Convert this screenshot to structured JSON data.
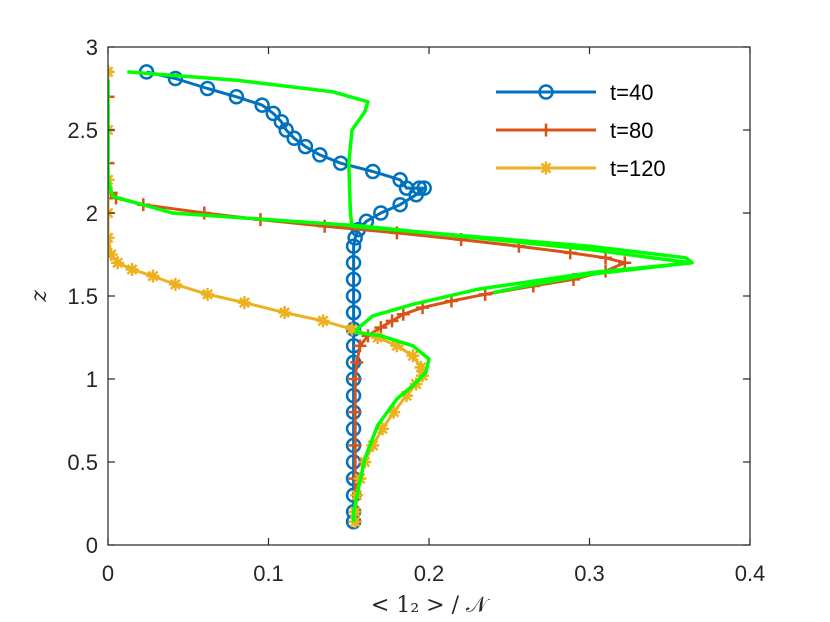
{
  "chart_data": {
    "type": "line",
    "xlabel": "< 1₂ > / 𝒩",
    "ylabel": "z",
    "xlim": [
      0,
      0.4
    ],
    "ylim": [
      0,
      3
    ],
    "xticks": [
      "0",
      "0.1",
      "0.2",
      "0.3",
      "0.4"
    ],
    "yticks": [
      "0",
      "0.5",
      "1",
      "1.5",
      "2",
      "2.5",
      "3"
    ],
    "grid": false,
    "legend_position": "top-right",
    "series": [
      {
        "name": "t=40",
        "color": "#0072BD",
        "marker": "circle",
        "points": [
          [
            0.024,
            2.85
          ],
          [
            0.042,
            2.81
          ],
          [
            0.062,
            2.75
          ],
          [
            0.08,
            2.7
          ],
          [
            0.096,
            2.65
          ],
          [
            0.103,
            2.6
          ],
          [
            0.108,
            2.55
          ],
          [
            0.111,
            2.5
          ],
          [
            0.116,
            2.45
          ],
          [
            0.123,
            2.4
          ],
          [
            0.132,
            2.35
          ],
          [
            0.145,
            2.3
          ],
          [
            0.165,
            2.25
          ],
          [
            0.182,
            2.2
          ],
          [
            0.186,
            2.15
          ],
          [
            0.194,
            2.15
          ],
          [
            0.197,
            2.15
          ],
          [
            0.192,
            2.11
          ],
          [
            0.182,
            2.05
          ],
          [
            0.17,
            2.0
          ],
          [
            0.161,
            1.95
          ],
          [
            0.156,
            1.9
          ],
          [
            0.154,
            1.85
          ],
          [
            0.153,
            1.8
          ],
          [
            0.153,
            1.7
          ],
          [
            0.153,
            1.6
          ],
          [
            0.153,
            1.5
          ],
          [
            0.153,
            1.4
          ],
          [
            0.153,
            1.3
          ],
          [
            0.153,
            1.2
          ],
          [
            0.153,
            1.1
          ],
          [
            0.153,
            1.0
          ],
          [
            0.153,
            0.9
          ],
          [
            0.153,
            0.8
          ],
          [
            0.153,
            0.7
          ],
          [
            0.153,
            0.6
          ],
          [
            0.153,
            0.5
          ],
          [
            0.153,
            0.4
          ],
          [
            0.153,
            0.3
          ],
          [
            0.153,
            0.2
          ],
          [
            0.153,
            0.14
          ]
        ]
      },
      {
        "name": "t=80",
        "color": "#D95319",
        "marker": "plus",
        "points": [
          [
            0.0,
            2.85
          ],
          [
            0.0,
            2.7
          ],
          [
            0.0,
            2.5
          ],
          [
            0.0,
            2.3
          ],
          [
            0.0,
            2.2
          ],
          [
            0.002,
            2.12
          ],
          [
            0.005,
            2.09
          ],
          [
            0.022,
            2.05
          ],
          [
            0.06,
            2.0
          ],
          [
            0.095,
            1.96
          ],
          [
            0.135,
            1.92
          ],
          [
            0.18,
            1.88
          ],
          [
            0.22,
            1.84
          ],
          [
            0.256,
            1.8
          ],
          [
            0.288,
            1.76
          ],
          [
            0.31,
            1.73
          ],
          [
            0.322,
            1.7
          ],
          [
            0.31,
            1.65
          ],
          [
            0.29,
            1.6
          ],
          [
            0.265,
            1.56
          ],
          [
            0.235,
            1.51
          ],
          [
            0.214,
            1.47
          ],
          [
            0.196,
            1.43
          ],
          [
            0.184,
            1.39
          ],
          [
            0.177,
            1.35
          ],
          [
            0.17,
            1.31
          ],
          [
            0.162,
            1.26
          ],
          [
            0.157,
            1.2
          ],
          [
            0.155,
            1.1
          ],
          [
            0.154,
            1.0
          ],
          [
            0.154,
            0.8
          ],
          [
            0.154,
            0.6
          ],
          [
            0.154,
            0.4
          ],
          [
            0.154,
            0.2
          ],
          [
            0.154,
            0.14
          ]
        ]
      },
      {
        "name": "t=120",
        "color": "#EDB120",
        "marker": "asterisk",
        "points": [
          [
            0.0,
            2.85
          ],
          [
            0.0,
            2.5
          ],
          [
            0.0,
            2.2
          ],
          [
            0.0,
            2.0
          ],
          [
            0.0,
            1.85
          ],
          [
            0.002,
            1.75
          ],
          [
            0.006,
            1.7
          ],
          [
            0.015,
            1.66
          ],
          [
            0.028,
            1.62
          ],
          [
            0.042,
            1.57
          ],
          [
            0.062,
            1.51
          ],
          [
            0.085,
            1.46
          ],
          [
            0.11,
            1.4
          ],
          [
            0.134,
            1.35
          ],
          [
            0.152,
            1.3
          ],
          [
            0.168,
            1.25
          ],
          [
            0.18,
            1.2
          ],
          [
            0.19,
            1.14
          ],
          [
            0.195,
            1.07
          ],
          [
            0.196,
            1.02
          ],
          [
            0.192,
            0.97
          ],
          [
            0.186,
            0.9
          ],
          [
            0.178,
            0.8
          ],
          [
            0.171,
            0.7
          ],
          [
            0.165,
            0.6
          ],
          [
            0.16,
            0.5
          ],
          [
            0.157,
            0.4
          ],
          [
            0.155,
            0.3
          ],
          [
            0.154,
            0.2
          ],
          [
            0.154,
            0.14
          ]
        ]
      },
      {
        "name": "",
        "color": "#00FF00",
        "marker": "none",
        "points": [
          [
            0.012,
            2.85
          ],
          [
            0.08,
            2.8
          ],
          [
            0.14,
            2.73
          ],
          [
            0.162,
            2.67
          ],
          [
            0.16,
            2.61
          ],
          [
            0.152,
            2.5
          ],
          [
            0.15,
            2.3
          ],
          [
            0.151,
            2.0
          ],
          [
            0.152,
            1.92
          ],
          [
            0.2,
            1.88
          ],
          [
            0.3,
            1.8
          ],
          [
            0.36,
            1.73
          ],
          [
            0.364,
            1.7
          ],
          [
            0.3,
            1.64
          ],
          [
            0.23,
            1.54
          ],
          [
            0.19,
            1.45
          ],
          [
            0.165,
            1.38
          ],
          [
            0.155,
            1.3
          ],
          [
            0.155,
            1.28
          ],
          [
            0.17,
            1.26
          ],
          [
            0.19,
            1.2
          ],
          [
            0.2,
            1.12
          ],
          [
            0.198,
            1.04
          ],
          [
            0.19,
            0.96
          ],
          [
            0.18,
            0.88
          ],
          [
            0.168,
            0.72
          ],
          [
            0.16,
            0.52
          ],
          [
            0.156,
            0.34
          ],
          [
            0.153,
            0.2
          ],
          [
            0.153,
            0.14
          ]
        ]
      },
      {
        "name": "",
        "color": "#00FF00",
        "marker": "none",
        "points": [
          [
            0.0,
            2.8
          ],
          [
            0.0,
            2.5
          ],
          [
            0.0,
            2.2
          ],
          [
            0.003,
            2.1
          ],
          [
            0.04,
            2.0
          ],
          [
            0.16,
            1.92
          ],
          [
            0.3,
            1.78
          ],
          [
            0.363,
            1.7
          ],
          [
            0.3,
            1.63
          ],
          [
            0.26,
            1.56
          ],
          [
            0.24,
            1.52
          ]
        ]
      }
    ]
  }
}
